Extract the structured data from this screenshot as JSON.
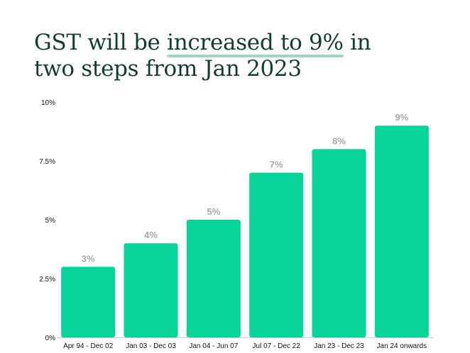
{
  "title": {
    "prefix": "GST will be ",
    "highlight": "increased to 9%",
    "suffix": " in",
    "line2": "two steps from Jan 2023"
  },
  "colors": {
    "bar": "#08d49a",
    "title": "#113d2e",
    "title_underline": "#9ad8c5",
    "data_label": "#a8a8a8",
    "tick_label": "#111111",
    "axis": "#cccccc"
  },
  "chart_data": {
    "type": "bar",
    "title": "GST will be increased to 9% in two steps from Jan 2023",
    "categories": [
      "Apr 94 - Dec 02",
      "Jan 03 - Dec 03",
      "Jan 04 - Jun 07",
      "Jul 07 - Dec 22",
      "Jan 23 - Dec 23",
      "Jan 24 onwards"
    ],
    "values": [
      3,
      4,
      5,
      7,
      8,
      9
    ],
    "data_labels": [
      "3%",
      "4%",
      "5%",
      "7%",
      "8%",
      "9%"
    ],
    "xlabel": "",
    "ylabel": "",
    "ylim": [
      0,
      10
    ],
    "yticks": [
      0,
      2.5,
      5,
      7.5,
      10
    ],
    "ytick_labels": [
      "0%",
      "2.5%",
      "5%",
      "7.5%",
      "10%"
    ],
    "grid": false,
    "legend": "none"
  }
}
